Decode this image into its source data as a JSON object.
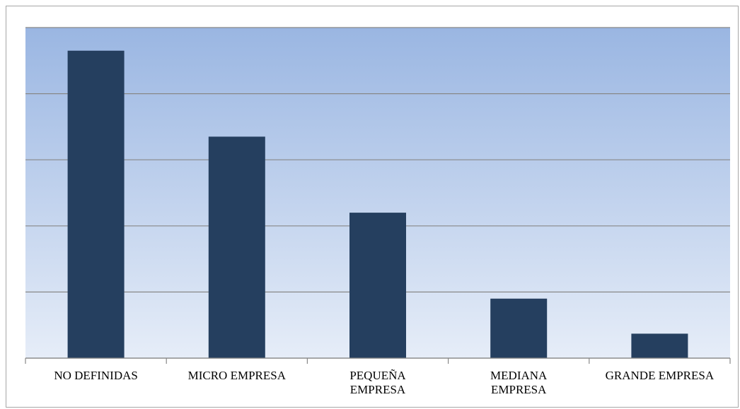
{
  "chart_data": {
    "type": "bar",
    "categories": [
      [
        "NO DEFINIDAS"
      ],
      [
        "MICRO EMPRESA"
      ],
      [
        "PEQUEÑA",
        "EMPRESA"
      ],
      [
        "MEDIANA",
        "EMPRESA"
      ],
      [
        "GRANDE EMPRESA"
      ]
    ],
    "values": [
      4.65,
      3.35,
      2.2,
      0.9,
      0.37
    ],
    "ylim": [
      0,
      5
    ],
    "gridlines": true,
    "legend": "none",
    "title": "",
    "xlabel": "",
    "ylabel": "",
    "colors": {
      "bar": "#253f5f",
      "plot_top": "#9ab6e2",
      "plot_bottom": "#e6edf8",
      "grid": "#888888",
      "axis": "#888888"
    }
  }
}
